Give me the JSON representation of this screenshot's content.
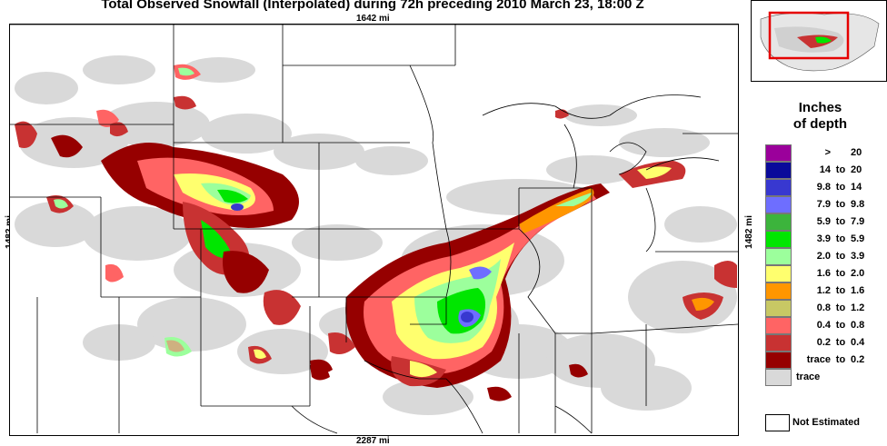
{
  "title": "Total Observed Snowfall (Interpolated) during 72h preceding 2010 March 23, 18:00 Z",
  "distances": {
    "top": "1642 mi",
    "bottom": "2287 mi",
    "left": "1482 mi",
    "right": "1482 mi"
  },
  "legend": {
    "title_line1": "Inches",
    "title_line2": "of depth",
    "rows": [
      {
        "lo": ">",
        "hi": "20",
        "to": "",
        "color": "#9b009b"
      },
      {
        "lo": "14",
        "to": "to",
        "hi": "20",
        "color": "#0a0a9a"
      },
      {
        "lo": "9.8",
        "to": "to",
        "hi": "14",
        "color": "#3838d0"
      },
      {
        "lo": "7.9",
        "to": "to",
        "hi": "9.8",
        "color": "#6e6eff"
      },
      {
        "lo": "5.9",
        "to": "to",
        "hi": "7.9",
        "color": "#3cb43c"
      },
      {
        "lo": "3.9",
        "to": "to",
        "hi": "5.9",
        "color": "#00e600"
      },
      {
        "lo": "2.0",
        "to": "to",
        "hi": "3.9",
        "color": "#9cff9c"
      },
      {
        "lo": "1.6",
        "to": "to",
        "hi": "2.0",
        "color": "#ffff6e"
      },
      {
        "lo": "1.2",
        "to": "to",
        "hi": "1.6",
        "color": "#ff9600"
      },
      {
        "lo": "0.8",
        "to": "to",
        "hi": "1.2",
        "color": "#c8c864"
      },
      {
        "lo": "0.4",
        "to": "to",
        "hi": "0.8",
        "color": "#ff6464"
      },
      {
        "lo": "0.2",
        "to": "to",
        "hi": "0.4",
        "color": "#c83232"
      },
      {
        "lo": "trace",
        "to": "to",
        "hi": "0.2",
        "color": "#960000"
      },
      {
        "lo": "trace",
        "to": "",
        "hi": "",
        "color": "#d9d9d9"
      }
    ],
    "not_estimated": "Not Estimated"
  }
}
